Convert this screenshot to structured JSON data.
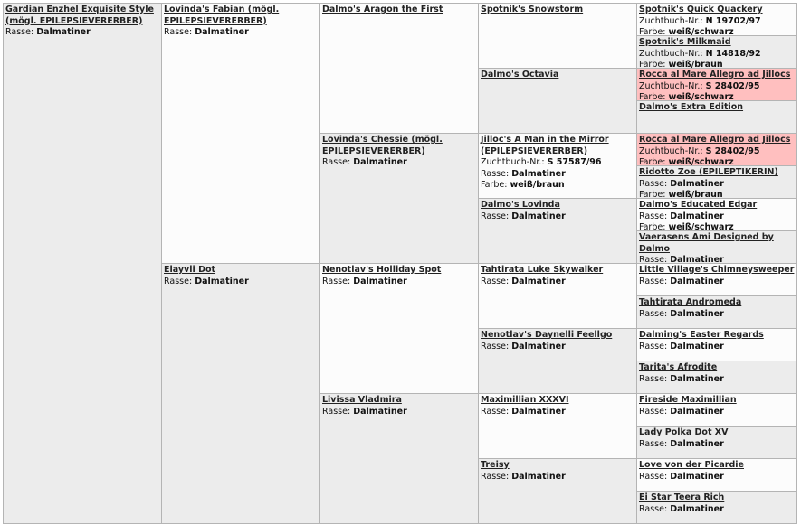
{
  "pedigree": {
    "columns": [
      [
        {
          "name": "Gardian Enzhel Exquisite Style (mögl. EPILEPSIEVERERBER)",
          "rows": [
            {
              "label": "Rasse:",
              "value": "Dalmatiner"
            }
          ]
        }
      ],
      [
        {
          "name": "Lovinda's Fabian (mögl. EPILEPSIEVERERBER)",
          "rows": [
            {
              "label": "Rasse:",
              "value": "Dalmatiner"
            }
          ]
        },
        {
          "name": "Elayvli Dot",
          "rows": [
            {
              "label": "Rasse:",
              "value": "Dalmatiner"
            }
          ]
        }
      ],
      [
        {
          "name": "Dalmo's Aragon the First",
          "rows": []
        },
        {
          "name": "Lovinda's Chessie (mögl. EPILEPSIEVERERBER)",
          "rows": [
            {
              "label": "Rasse:",
              "value": "Dalmatiner"
            }
          ]
        },
        {
          "name": "Nenotlav's Holliday Spot",
          "rows": [
            {
              "label": "Rasse:",
              "value": "Dalmatiner"
            }
          ]
        },
        {
          "name": "Livissa Vladmira",
          "rows": [
            {
              "label": "Rasse:",
              "value": "Dalmatiner"
            }
          ]
        }
      ],
      [
        {
          "name": "Spotnik's Snowstorm",
          "rows": []
        },
        {
          "name": "Dalmo's Octavia",
          "rows": []
        },
        {
          "name": "Jilloc's A Man in the Mirror (EPILEPSIEVERERBER)",
          "rows": [
            {
              "label": "Zuchtbuch-Nr.:",
              "value": "S 57587/96"
            },
            {
              "label": "Rasse:",
              "value": "Dalmatiner"
            },
            {
              "label": "Farbe:",
              "value": "weiß/braun"
            }
          ]
        },
        {
          "name": "Dalmo's Lovinda",
          "rows": [
            {
              "label": "Rasse:",
              "value": "Dalmatiner"
            }
          ]
        },
        {
          "name": "Tahtirata Luke Skywalker",
          "rows": [
            {
              "label": "Rasse:",
              "value": "Dalmatiner"
            }
          ]
        },
        {
          "name": "Nenotlav's Daynelli Feellgo",
          "rows": [
            {
              "label": "Rasse:",
              "value": "Dalmatiner"
            }
          ]
        },
        {
          "name": "Maximillian XXXVI",
          "rows": [
            {
              "label": "Rasse:",
              "value": "Dalmatiner"
            }
          ]
        },
        {
          "name": "Treisy",
          "rows": [
            {
              "label": "Rasse:",
              "value": "Dalmatiner"
            }
          ]
        }
      ],
      [
        {
          "name": "Spotnik's Quick Quackery",
          "rows": [
            {
              "label": "Zuchtbuch-Nr.:",
              "value": "N 19702/97"
            },
            {
              "label": "Farbe:",
              "value": "weiß/schwarz"
            }
          ]
        },
        {
          "name": "Spotnik's Milkmaid",
          "rows": [
            {
              "label": "Zuchtbuch-Nr.:",
              "value": "N 14818/92"
            },
            {
              "label": "Farbe:",
              "value": "weiß/braun"
            }
          ]
        },
        {
          "name": "Rocca al Mare Allegro ad Jillocs",
          "highlight": true,
          "rows": [
            {
              "label": "Zuchtbuch-Nr.:",
              "value": "S 28402/95"
            },
            {
              "label": "Farbe:",
              "value": "weiß/schwarz"
            }
          ]
        },
        {
          "name": "Dalmo's Extra Edition",
          "rows": []
        },
        {
          "name": "Rocca al Mare Allegro ad Jillocs",
          "highlight": true,
          "rows": [
            {
              "label": "Zuchtbuch-Nr.:",
              "value": "S 28402/95"
            },
            {
              "label": "Farbe:",
              "value": "weiß/schwarz"
            }
          ]
        },
        {
          "name": "Ridotto Zoe (EPILEPTIKERIN)",
          "rows": [
            {
              "label": "Rasse:",
              "value": "Dalmatiner"
            },
            {
              "label": "Farbe:",
              "value": "weiß/braun"
            }
          ]
        },
        {
          "name": "Dalmo's Educated Edgar",
          "rows": [
            {
              "label": "Rasse:",
              "value": "Dalmatiner"
            },
            {
              "label": "Farbe:",
              "value": "weiß/schwarz"
            }
          ]
        },
        {
          "name": "Vaerasens Ami Designed by Dalmo",
          "rows": [
            {
              "label": "Rasse:",
              "value": "Dalmatiner"
            }
          ]
        },
        {
          "name": "Little Village's Chimneysweeper",
          "rows": [
            {
              "label": "Rasse:",
              "value": "Dalmatiner"
            }
          ]
        },
        {
          "name": "Tahtirata Andromeda",
          "rows": [
            {
              "label": "Rasse:",
              "value": "Dalmatiner"
            }
          ]
        },
        {
          "name": "Dalming's Easter Regards",
          "rows": [
            {
              "label": "Rasse:",
              "value": "Dalmatiner"
            }
          ]
        },
        {
          "name": "Tarita's Afrodite",
          "rows": [
            {
              "label": "Rasse:",
              "value": "Dalmatiner"
            }
          ]
        },
        {
          "name": "Fireside Maximillian",
          "rows": [
            {
              "label": "Rasse:",
              "value": "Dalmatiner"
            }
          ]
        },
        {
          "name": "Lady Polka Dot XV",
          "rows": [
            {
              "label": "Rasse:",
              "value": "Dalmatiner"
            }
          ]
        },
        {
          "name": "Love von der Picardie",
          "rows": [
            {
              "label": "Rasse:",
              "value": "Dalmatiner"
            }
          ]
        },
        {
          "name": "Ei Star Teera Rich",
          "rows": [
            {
              "label": "Rasse:",
              "value": "Dalmatiner"
            }
          ]
        }
      ]
    ]
  }
}
